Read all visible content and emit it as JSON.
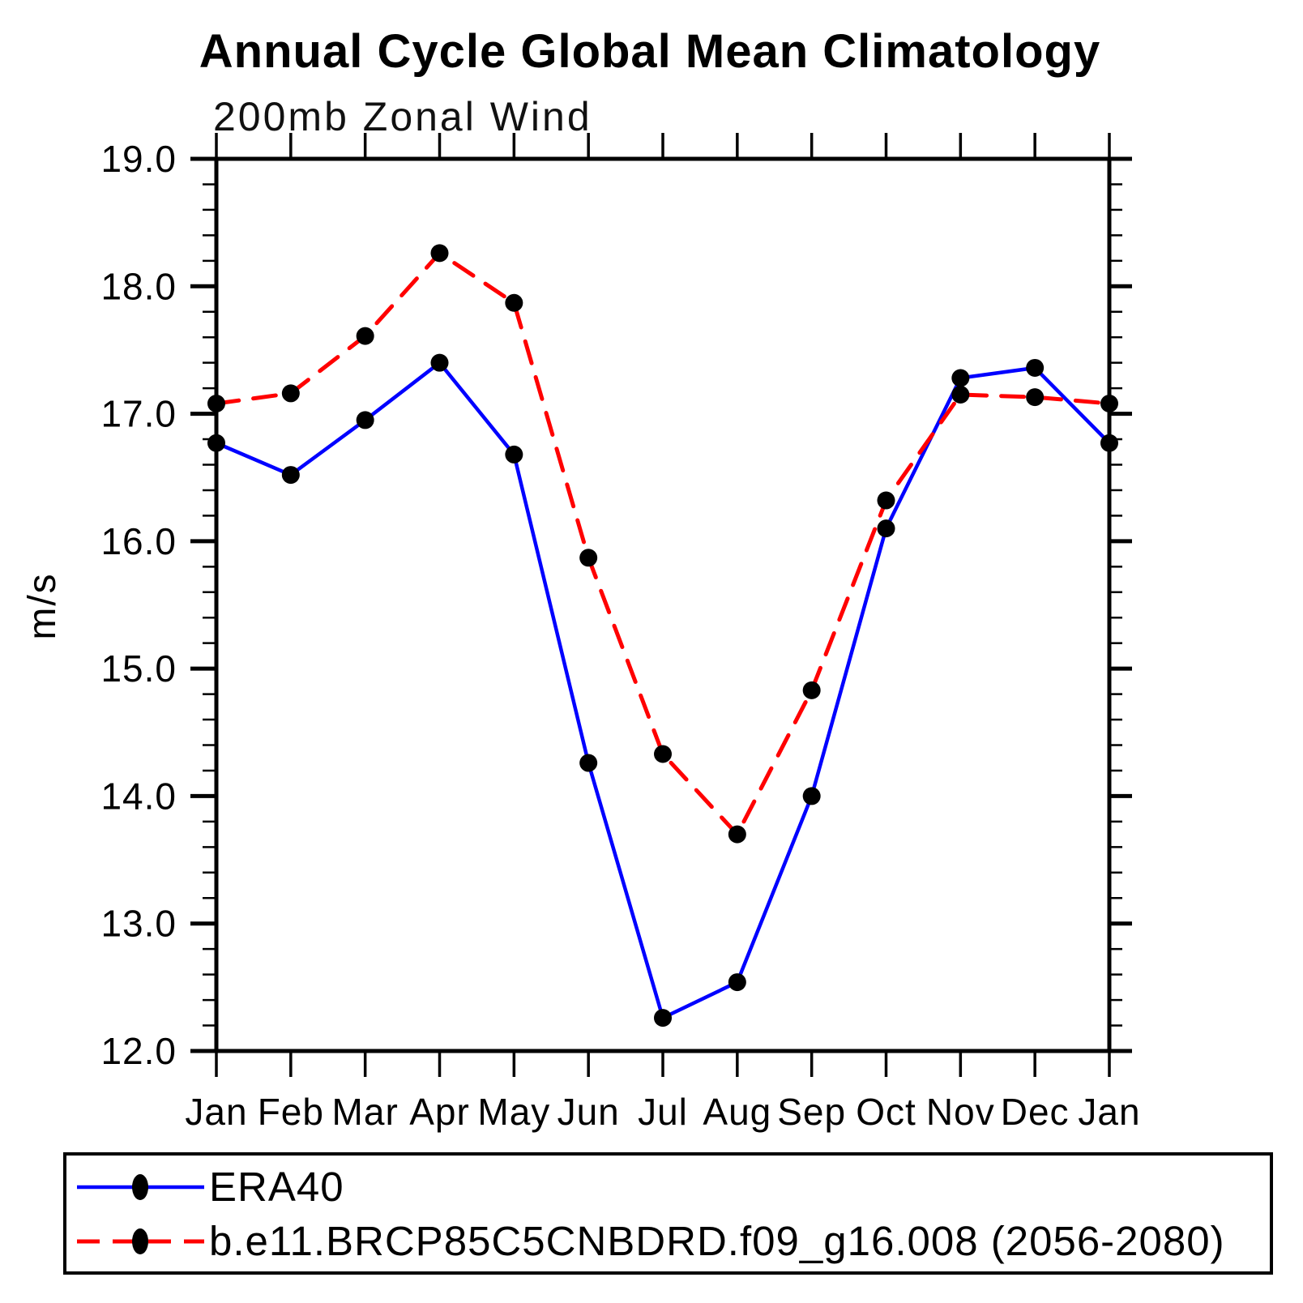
{
  "title": "Annual Cycle Global Mean Climatology",
  "subtitle": "200mb Zonal Wind",
  "ylabel": "m/s",
  "chart_data": {
    "type": "line",
    "categories": [
      "Jan",
      "Feb",
      "Mar",
      "Apr",
      "May",
      "Jun",
      "Jul",
      "Aug",
      "Sep",
      "Oct",
      "Nov",
      "Dec",
      "Jan"
    ],
    "series": [
      {
        "name": "ERA40",
        "color": "#0000ff",
        "line_style": "solid",
        "marker": "filled-circle",
        "marker_color": "#000000",
        "values": [
          16.77,
          16.52,
          16.95,
          17.4,
          16.68,
          14.26,
          12.26,
          12.54,
          14.0,
          16.1,
          17.28,
          17.36,
          16.77
        ]
      },
      {
        "name": "b.e11.BRCP85C5CNBDRD.f09_g16.008 (2056-2080)",
        "color": "#ff0000",
        "line_style": "dashed",
        "marker": "filled-circle",
        "marker_color": "#000000",
        "values": [
          17.08,
          17.16,
          17.61,
          18.26,
          17.87,
          15.87,
          14.33,
          13.7,
          14.83,
          16.32,
          17.15,
          17.13,
          17.08
        ]
      }
    ],
    "xlabel": "",
    "ylim": [
      12.0,
      19.0
    ],
    "ytick_major": 1.0,
    "ytick_minor": 0.2,
    "ytick_labels": [
      "12.0",
      "13.0",
      "14.0",
      "15.0",
      "16.0",
      "17.0",
      "18.0",
      "19.0"
    ],
    "grid": false,
    "legend_position": "bottom",
    "axis_color": "#000000"
  }
}
